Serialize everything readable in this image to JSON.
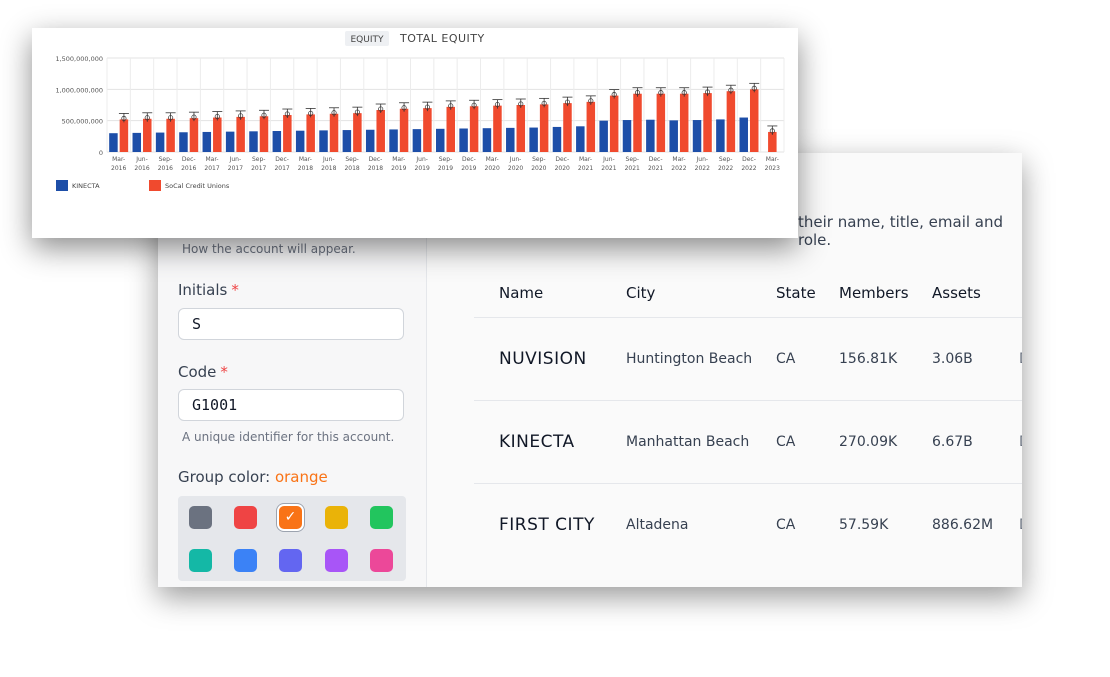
{
  "form": {
    "account_hint": "How the account will appear.",
    "initials_label": "Initials",
    "initials_value": "S",
    "code_label": "Code",
    "code_value": "G1001",
    "code_help": "A unique identifier for this account.",
    "required_mark": "*",
    "group_color_label": "Group color:",
    "group_color_value": "orange",
    "group_color_accent": "#f97316",
    "swatches": [
      {
        "name": "gray",
        "color": "#6b7280"
      },
      {
        "name": "red",
        "color": "#ef4444"
      },
      {
        "name": "orange",
        "color": "#f97316",
        "selected": true
      },
      {
        "name": "yellow",
        "color": "#eab308"
      },
      {
        "name": "green",
        "color": "#22c55e"
      },
      {
        "name": "teal",
        "color": "#14b8a6"
      },
      {
        "name": "blue",
        "color": "#3b82f6"
      },
      {
        "name": "indigo",
        "color": "#6366f1"
      },
      {
        "name": "purple",
        "color": "#a855f7"
      },
      {
        "name": "pink",
        "color": "#ec4899"
      }
    ]
  },
  "users_hint": "their name, title, email and role.",
  "table": {
    "columns": [
      "Name",
      "City",
      "State",
      "Members",
      "Assets"
    ],
    "rows": [
      {
        "name": "NUVISION",
        "city": "Huntington Beach",
        "state": "CA",
        "members": "156.81K",
        "assets": "3.06B",
        "cut": "D"
      },
      {
        "name": "KINECTA",
        "city": "Manhattan Beach",
        "state": "CA",
        "members": "270.09K",
        "assets": "6.67B",
        "cut": "D"
      },
      {
        "name": "FIRST CITY",
        "city": "Altadena",
        "state": "CA",
        "members": "57.59K",
        "assets": "886.62M",
        "cut": "D"
      }
    ]
  },
  "chart_data": {
    "type": "bar",
    "title": "TOTAL EQUITY",
    "tag": "EQUITY",
    "ylim": [
      0,
      1500000000
    ],
    "yticks": [
      0,
      500000000,
      1000000000,
      1500000000
    ],
    "ytick_labels": [
      "0",
      "500,000,000",
      "1,000,000,000",
      "1,500,000,000"
    ],
    "grid": true,
    "legend_position": "bottom-left",
    "categories": [
      "Mar-2016",
      "Jun-2016",
      "Sep-2016",
      "Dec-2016",
      "Mar-2017",
      "Jun-2017",
      "Sep-2017",
      "Dec-2017",
      "Mar-2018",
      "Jun-2018",
      "Sep-2018",
      "Dec-2018",
      "Mar-2019",
      "Jun-2019",
      "Sep-2019",
      "Dec-2019",
      "Mar-2020",
      "Jun-2020",
      "Sep-2020",
      "Dec-2020",
      "Mar-2021",
      "Jun-2021",
      "Sep-2021",
      "Dec-2021",
      "Mar-2022",
      "Jun-2022",
      "Sep-2022",
      "Dec-2022",
      "Mar-2023"
    ],
    "series": [
      {
        "name": "KINECTA",
        "color": "#1d4ea8",
        "values": [
          300000000,
          305000000,
          310000000,
          315000000,
          320000000,
          325000000,
          330000000,
          335000000,
          340000000,
          345000000,
          350000000,
          355000000,
          360000000,
          365000000,
          370000000,
          375000000,
          380000000,
          385000000,
          390000000,
          400000000,
          410000000,
          500000000,
          510000000,
          515000000,
          505000000,
          510000000,
          520000000,
          550000000,
          null
        ]
      },
      {
        "name": "SoCal Credit Unions",
        "color": "#f04a2e",
        "values": [
          520000000,
          530000000,
          530000000,
          540000000,
          550000000,
          560000000,
          570000000,
          590000000,
          600000000,
          610000000,
          620000000,
          670000000,
          690000000,
          700000000,
          720000000,
          730000000,
          740000000,
          750000000,
          760000000,
          780000000,
          800000000,
          900000000,
          930000000,
          930000000,
          930000000,
          940000000,
          970000000,
          1000000000,
          320000000
        ]
      }
    ]
  }
}
